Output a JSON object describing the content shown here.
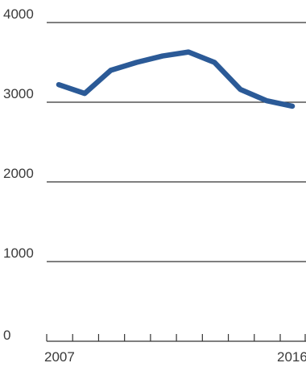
{
  "chart_data": {
    "type": "line",
    "title": "",
    "xlabel": "",
    "ylabel": "",
    "x": [
      2007,
      2008,
      2009,
      2010,
      2011,
      2012,
      2013,
      2014,
      2015,
      2016
    ],
    "x_tick_labels": [
      "2007",
      "2016"
    ],
    "y_ticks": [
      0,
      1000,
      2000,
      3000,
      4000
    ],
    "ylim": [
      0,
      4000
    ],
    "grid": true,
    "legend": "none",
    "series": [
      {
        "values": [
          3220,
          3110,
          3400,
          3500,
          3580,
          3630,
          3500,
          3160,
          3020,
          2950
        ],
        "color": "#2b5a97"
      }
    ],
    "colors": {
      "line": "#2b5a97",
      "grid": "#333333",
      "text": "#3a3a3a"
    }
  }
}
